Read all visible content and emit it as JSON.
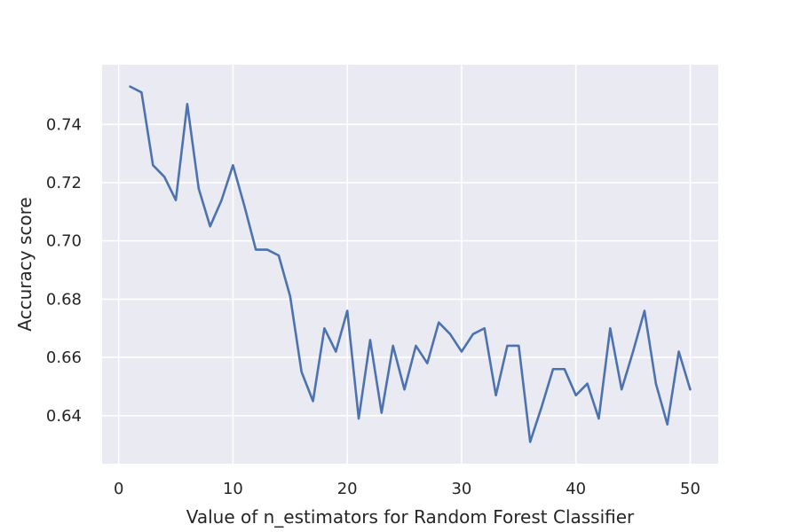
{
  "chart_data": {
    "type": "line",
    "title": "",
    "xlabel": "Value of n_estimators for Random Forest Classifier",
    "ylabel": "Accuracy score",
    "xlim": [
      -1.45,
      52.45
    ],
    "ylim": [
      0.6235,
      0.7605
    ],
    "xticks": [
      0,
      10,
      20,
      30,
      40,
      50
    ],
    "xtick_labels": [
      "0",
      "10",
      "20",
      "30",
      "40",
      "50"
    ],
    "yticks": [
      0.64,
      0.66,
      0.68,
      0.7,
      0.72,
      0.74
    ],
    "ytick_labels": [
      "0.64",
      "0.66",
      "0.68",
      "0.70",
      "0.72",
      "0.74"
    ],
    "grid": true,
    "colors": {
      "line": "#4c72b0",
      "background": "#eaeaf2",
      "grid": "#ffffff"
    },
    "series": [
      {
        "x": [
          1,
          2,
          3,
          4,
          5,
          6,
          7,
          8,
          9,
          10,
          11,
          12,
          13,
          14,
          15,
          16,
          17,
          18,
          19,
          20,
          21,
          22,
          23,
          24,
          25,
          26,
          27,
          28,
          29,
          30,
          31,
          32,
          33,
          34,
          35,
          36,
          37,
          38,
          39,
          40,
          41,
          42,
          43,
          44,
          45,
          46,
          47,
          48,
          49,
          50
        ],
        "values": [
          0.753,
          0.751,
          0.726,
          0.722,
          0.714,
          0.747,
          0.718,
          0.705,
          0.714,
          0.726,
          0.712,
          0.697,
          0.697,
          0.695,
          0.681,
          0.655,
          0.645,
          0.67,
          0.662,
          0.676,
          0.639,
          0.666,
          0.641,
          0.664,
          0.649,
          0.664,
          0.658,
          0.672,
          0.668,
          0.662,
          0.668,
          0.67,
          0.647,
          0.664,
          0.664,
          0.631,
          0.643,
          0.656,
          0.656,
          0.647,
          0.651,
          0.639,
          0.67,
          0.649,
          0.662,
          0.676,
          0.651,
          0.637,
          0.662,
          0.649
        ]
      }
    ]
  }
}
